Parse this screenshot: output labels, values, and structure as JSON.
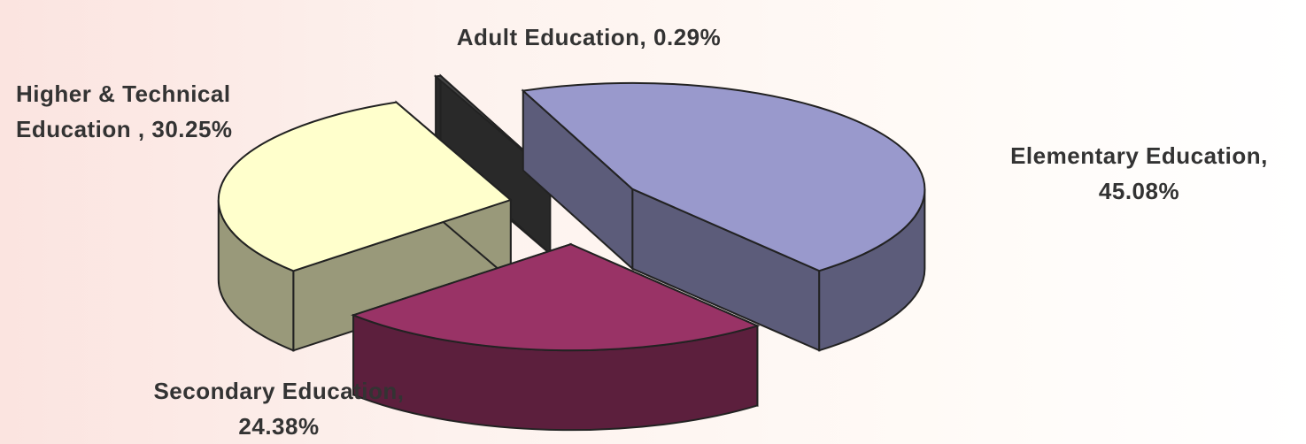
{
  "chart_data": {
    "type": "pie3d",
    "categories": [
      "Elementary Education,",
      "Secondary Education,",
      "Higher & Technical Education ,",
      "Adult Education,"
    ],
    "values": [
      45.08,
      24.38,
      30.25,
      0.29
    ],
    "value_labels": [
      "45.08%",
      "24.38%",
      "30.25%",
      "0.29%"
    ],
    "colors": [
      "#9999cc",
      "#993366",
      "#ffffcc",
      "#444444"
    ]
  }
}
